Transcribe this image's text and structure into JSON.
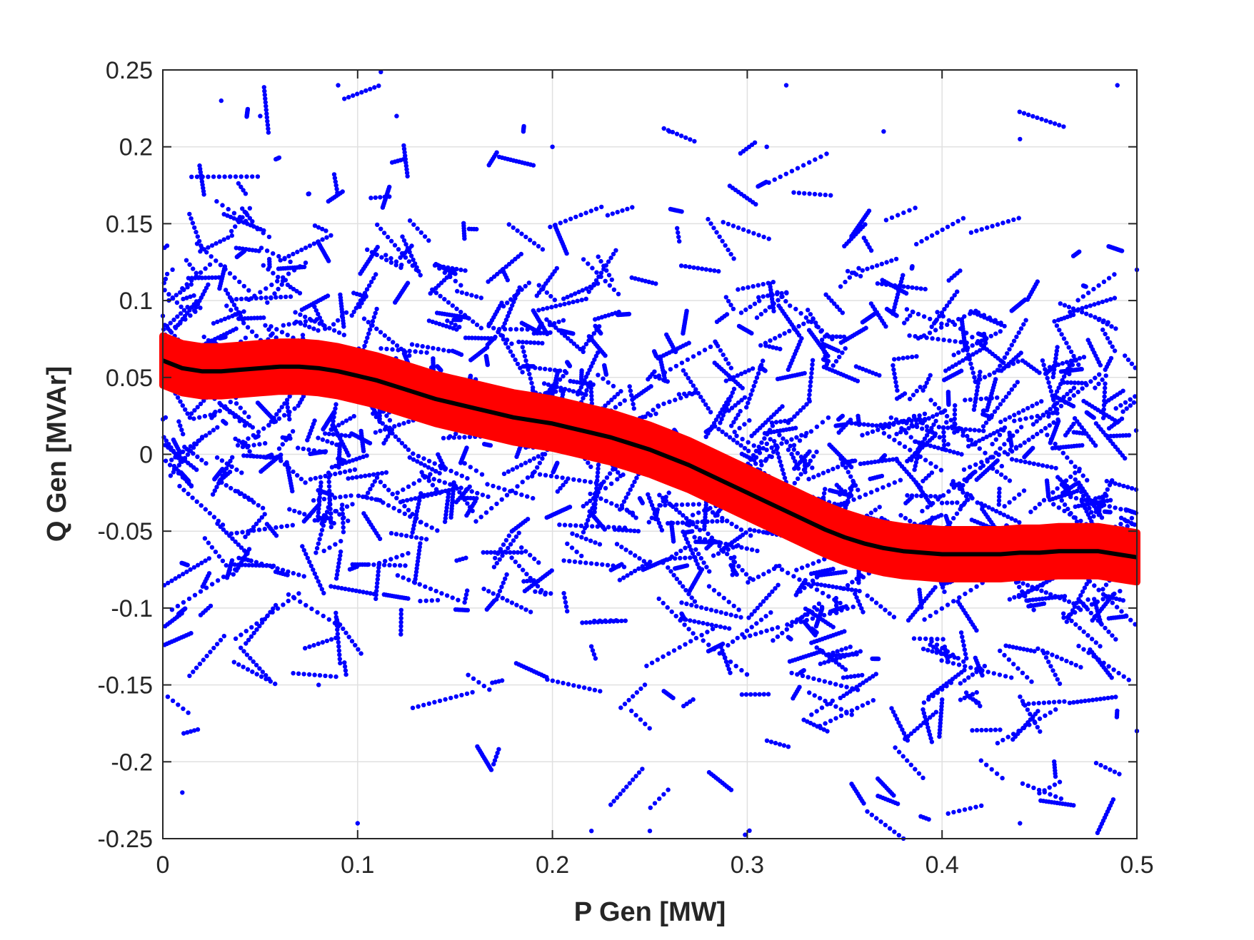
{
  "chart_data": {
    "type": "scatter",
    "title": "",
    "xlabel": "P Gen [MW]",
    "ylabel": "Q Gen [MVAr]",
    "xlim": [
      0,
      0.5
    ],
    "ylim": [
      -0.25,
      0.25
    ],
    "x_ticks": [
      0,
      0.1,
      0.2,
      0.3,
      0.4,
      0.5
    ],
    "y_ticks": [
      -0.25,
      -0.2,
      -0.15,
      -0.1,
      -0.05,
      0,
      0.05,
      0.1,
      0.15,
      0.2,
      0.25
    ],
    "x_tick_labels": [
      "0",
      "0.1",
      "0.2",
      "0.3",
      "0.4",
      "0.5"
    ],
    "y_tick_labels": [
      "-0.25",
      "-0.2",
      "-0.15",
      "-0.1",
      "-0.05",
      "0",
      "0.05",
      "0.1",
      "0.15",
      "0.2",
      "0.25"
    ],
    "grid": true,
    "box": true,
    "series": [
      {
        "kind": "scatter",
        "color": "#0000ff",
        "description_points_sample": [
          [
            0.0,
            0.09
          ],
          [
            0.01,
            -0.22
          ],
          [
            0.03,
            0.23
          ],
          [
            0.05,
            0.22
          ],
          [
            0.09,
            0.24
          ],
          [
            0.1,
            -0.24
          ],
          [
            0.12,
            0.22
          ],
          [
            0.2,
            0.2
          ],
          [
            0.26,
            0.21
          ],
          [
            0.31,
            0.2
          ],
          [
            0.32,
            0.24
          ],
          [
            0.37,
            0.21
          ],
          [
            0.44,
            0.205
          ],
          [
            0.44,
            -0.24
          ],
          [
            0.49,
            0.24
          ],
          [
            0.5,
            0.12
          ],
          [
            0.5,
            -0.18
          ],
          [
            0.22,
            -0.245
          ],
          [
            0.25,
            -0.245
          ],
          [
            0.08,
            -0.15
          ]
        ]
      },
      {
        "kind": "band",
        "color": "#ff0000",
        "halfwidth": 0.016
      },
      {
        "kind": "line",
        "color": "#000000",
        "x": [
          0,
          0.01,
          0.02,
          0.03,
          0.04,
          0.05,
          0.06,
          0.07,
          0.08,
          0.09,
          0.1,
          0.11,
          0.12,
          0.13,
          0.14,
          0.15,
          0.16,
          0.17,
          0.18,
          0.19,
          0.2,
          0.21,
          0.22,
          0.23,
          0.24,
          0.25,
          0.26,
          0.27,
          0.28,
          0.29,
          0.3,
          0.31,
          0.32,
          0.33,
          0.34,
          0.35,
          0.36,
          0.37,
          0.38,
          0.39,
          0.4,
          0.41,
          0.42,
          0.43,
          0.44,
          0.45,
          0.46,
          0.47,
          0.48,
          0.49,
          0.5
        ],
        "y": [
          0.061,
          0.056,
          0.054,
          0.054,
          0.055,
          0.056,
          0.057,
          0.057,
          0.056,
          0.054,
          0.051,
          0.048,
          0.044,
          0.04,
          0.036,
          0.033,
          0.03,
          0.027,
          0.024,
          0.022,
          0.02,
          0.017,
          0.014,
          0.011,
          0.007,
          0.003,
          -0.002,
          -0.007,
          -0.013,
          -0.019,
          -0.025,
          -0.031,
          -0.037,
          -0.043,
          -0.049,
          -0.054,
          -0.058,
          -0.061,
          -0.063,
          -0.064,
          -0.065,
          -0.065,
          -0.065,
          -0.065,
          -0.064,
          -0.064,
          -0.063,
          -0.063,
          -0.063,
          -0.065,
          -0.067
        ]
      }
    ]
  }
}
